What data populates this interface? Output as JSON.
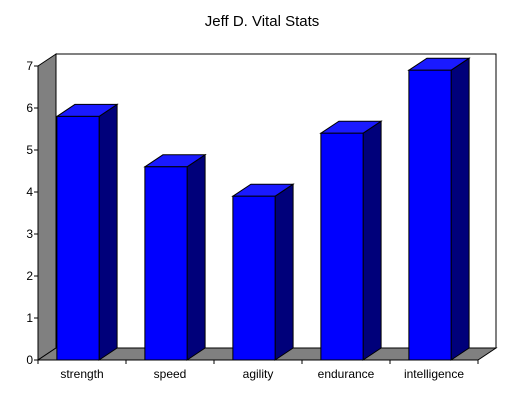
{
  "chart_data": {
    "type": "bar",
    "title": "Jeff D.  Vital Stats",
    "xlabel": "",
    "ylabel": "",
    "categories": [
      "strength",
      "speed",
      "agility",
      "endurance",
      "intelligence"
    ],
    "values": [
      5.8,
      4.6,
      3.9,
      5.4,
      6.9
    ],
    "ylim": [
      0,
      7
    ],
    "yticks": [
      "0",
      "1",
      "2",
      "3",
      "4",
      "5",
      "6",
      "7"
    ],
    "grid": false,
    "legend": "none",
    "three_d": true,
    "colors": {
      "bar_front": "#0000ff",
      "bar_top": "#1a1aff",
      "bar_side": "#00007a",
      "wall": "#ffffff",
      "floor": "#808080",
      "axis": "#000000"
    }
  }
}
